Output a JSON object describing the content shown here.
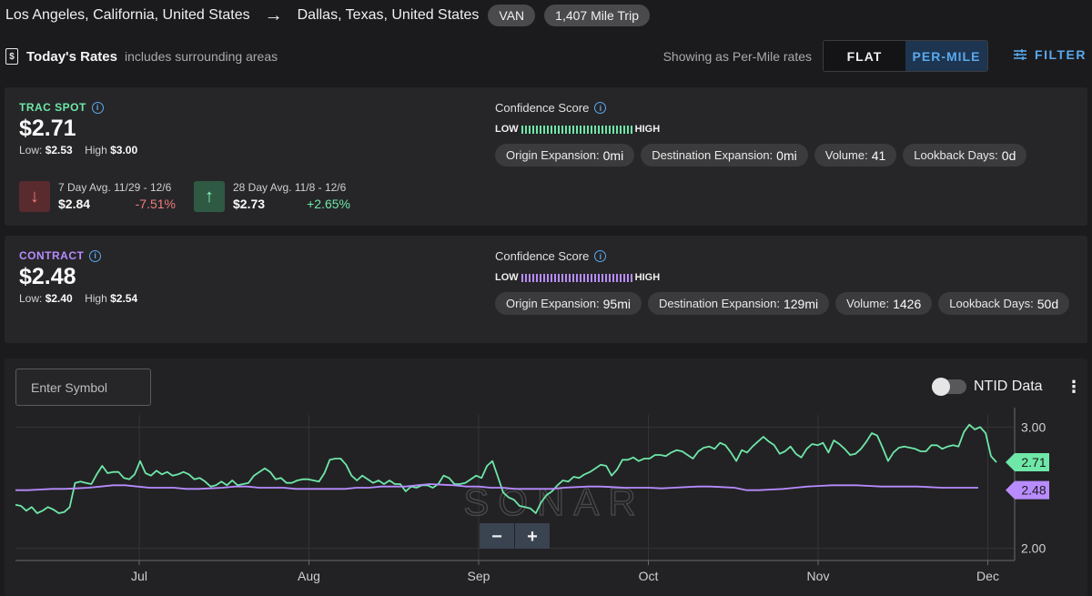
{
  "route": {
    "origin": "Los Angeles, California, United States",
    "destination": "Dallas, Texas, United States",
    "equipment": "VAN",
    "trip": "1,407 Mile Trip"
  },
  "rates_header": {
    "icon": "dollar-document-icon",
    "title": "Today's Rates",
    "subtitle": "includes surrounding areas",
    "showing": "Showing as Per-Mile rates",
    "flat_label": "FLAT",
    "permile_label": "PER-MILE",
    "filter_label": "FILTER"
  },
  "spot": {
    "label": "TRAC SPOT",
    "price": "$2.71",
    "low_label": "Low:",
    "low": "$2.53",
    "high_label": "High",
    "high": "$3.00",
    "avg7": {
      "label": "7 Day Avg. 11/29 - 12/6",
      "value": "$2.84",
      "change": "-7.51%",
      "direction": "down"
    },
    "avg28": {
      "label": "28 Day Avg. 11/8 - 12/6",
      "value": "$2.73",
      "change": "+2.65%",
      "direction": "up"
    },
    "confidence_title": "Confidence Score",
    "low_word": "LOW",
    "high_word": "HIGH",
    "chips": [
      {
        "label": "Origin Expansion:",
        "value": "0mi"
      },
      {
        "label": "Destination Expansion:",
        "value": "0mi"
      },
      {
        "label": "Volume:",
        "value": "41"
      },
      {
        "label": "Lookback Days:",
        "value": "0d"
      }
    ],
    "color": "#6ee7a8"
  },
  "contract": {
    "label": "CONTRACT",
    "price": "$2.48",
    "low_label": "Low:",
    "low": "$2.40",
    "high_label": "High",
    "high": "$2.54",
    "confidence_title": "Confidence Score",
    "low_word": "LOW",
    "high_word": "HIGH",
    "chips": [
      {
        "label": "Origin Expansion:",
        "value": "95mi"
      },
      {
        "label": "Destination Expansion:",
        "value": "129mi"
      },
      {
        "label": "Volume:",
        "value": "1426"
      },
      {
        "label": "Lookback Days:",
        "value": "50d"
      }
    ],
    "color": "#b88cff"
  },
  "chart_controls": {
    "symbol_placeholder": "Enter Symbol",
    "ntid_label": "NTID Data",
    "watermark": "SONAR",
    "zoom_out": "−",
    "zoom_in": "+"
  },
  "chart_data": {
    "type": "line",
    "x_ticks": [
      "Jul",
      "Aug",
      "Sep",
      "Oct",
      "Nov",
      "Dec"
    ],
    "y_ticks": [
      "3.00",
      "2.00"
    ],
    "ylim": [
      1.9,
      3.1
    ],
    "series": [
      {
        "color": "#6ee7a8",
        "last_value": "2.71",
        "values": [
          2.36,
          2.35,
          2.31,
          2.34,
          2.29,
          2.31,
          2.34,
          2.32,
          2.29,
          2.3,
          2.34,
          2.54,
          2.55,
          2.54,
          2.53,
          2.61,
          2.68,
          2.62,
          2.63,
          2.63,
          2.58,
          2.57,
          2.61,
          2.72,
          2.62,
          2.6,
          2.64,
          2.61,
          2.63,
          2.6,
          2.61,
          2.63,
          2.61,
          2.57,
          2.58,
          2.55,
          2.51,
          2.52,
          2.55,
          2.52,
          2.56,
          2.52,
          2.53,
          2.54,
          2.6,
          2.63,
          2.66,
          2.63,
          2.57,
          2.58,
          2.54,
          2.54,
          2.56,
          2.57,
          2.57,
          2.56,
          2.55,
          2.62,
          2.73,
          2.74,
          2.74,
          2.69,
          2.6,
          2.56,
          2.6,
          2.57,
          2.54,
          2.56,
          2.53,
          2.56,
          2.53,
          2.53,
          2.47,
          2.51,
          2.5,
          2.52,
          2.52,
          2.5,
          2.53,
          2.6,
          2.58,
          2.53,
          2.53,
          2.54,
          2.57,
          2.6,
          2.58,
          2.68,
          2.72,
          2.59,
          2.46,
          2.42,
          2.4,
          2.35,
          2.34,
          2.33,
          2.29,
          2.38,
          2.44,
          2.47,
          2.52,
          2.56,
          2.55,
          2.59,
          2.58,
          2.61,
          2.63,
          2.66,
          2.69,
          2.68,
          2.6,
          2.65,
          2.73,
          2.73,
          2.75,
          2.72,
          2.74,
          2.74,
          2.77,
          2.77,
          2.76,
          2.79,
          2.81,
          2.8,
          2.77,
          2.74,
          2.8,
          2.83,
          2.84,
          2.82,
          2.87,
          2.85,
          2.79,
          2.72,
          2.81,
          2.79,
          2.84,
          2.88,
          2.92,
          2.88,
          2.85,
          2.78,
          2.8,
          2.84,
          2.78,
          2.75,
          2.82,
          2.86,
          2.85,
          2.87,
          2.79,
          2.89,
          2.86,
          2.82,
          2.77,
          2.78,
          2.82,
          2.88,
          2.95,
          2.93,
          2.83,
          2.72,
          2.79,
          2.83,
          2.84,
          2.83,
          2.82,
          2.8,
          2.8,
          2.85,
          2.85,
          2.82,
          2.84,
          2.85,
          2.84,
          2.96,
          3.02,
          2.98,
          3.0,
          2.95,
          2.76,
          2.71
        ]
      },
      {
        "color": "#b88cff",
        "last_value": "2.48",
        "values": [
          2.48,
          2.48,
          2.485,
          2.49,
          2.49,
          2.495,
          2.5,
          2.51,
          2.52,
          2.52,
          2.51,
          2.5,
          2.5,
          2.5,
          2.49,
          2.49,
          2.495,
          2.5,
          2.51,
          2.51,
          2.5,
          2.5,
          2.5,
          2.49,
          2.49,
          2.49,
          2.49,
          2.49,
          2.5,
          2.5,
          2.51,
          2.51,
          2.51,
          2.52,
          2.53,
          2.525,
          2.52,
          2.51,
          2.51,
          2.5,
          2.5,
          2.49,
          2.49,
          2.49,
          2.49,
          2.5,
          2.505,
          2.51,
          2.51,
          2.505,
          2.5,
          2.5,
          2.5,
          2.495,
          2.5,
          2.505,
          2.51,
          2.51,
          2.505,
          2.5,
          2.48,
          2.48,
          2.485,
          2.49,
          2.5,
          2.51,
          2.515,
          2.52,
          2.52,
          2.52,
          2.515,
          2.51,
          2.51,
          2.51,
          2.51,
          2.505,
          2.5,
          2.5,
          2.5,
          2.5
        ]
      }
    ]
  }
}
